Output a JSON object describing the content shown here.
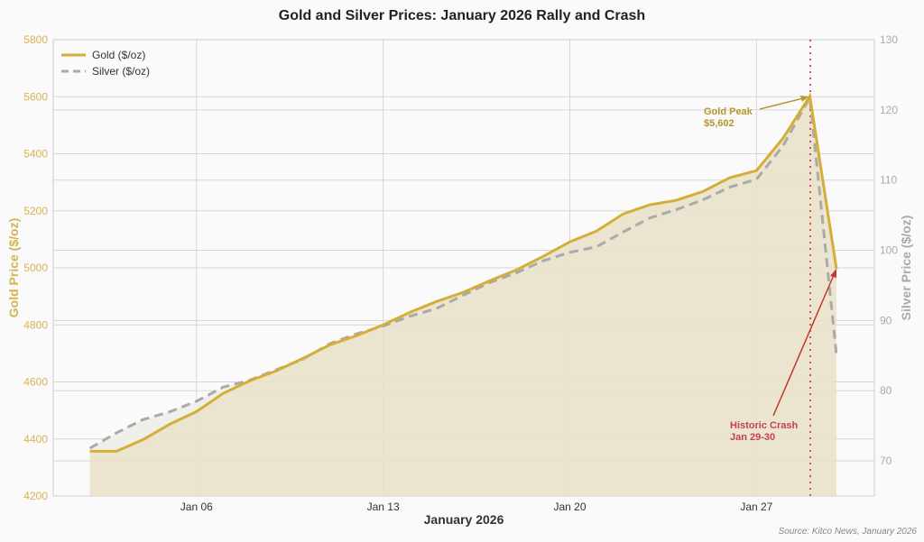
{
  "chart_data": {
    "type": "line",
    "title": "Gold and Silver Prices: January 2026 Rally and Crash",
    "xlabel": "January 2026",
    "ylabel_left": "Gold Price ($/oz)",
    "ylabel_right": "Silver Price ($/oz)",
    "ylim_left": [
      4200,
      5800
    ],
    "ylim_right": [
      65,
      130
    ],
    "yticks_left": [
      4200,
      4400,
      4600,
      4800,
      5000,
      5200,
      5400,
      5600,
      5800
    ],
    "yticks_right": [
      70,
      80,
      90,
      100,
      110,
      120,
      130
    ],
    "xticks": [
      "Jan 06",
      "Jan 13",
      "Jan 20",
      "Jan 27"
    ],
    "grid": true,
    "legend_position": "upper left",
    "x": [
      "Jan 02",
      "Jan 03",
      "Jan 04",
      "Jan 05",
      "Jan 06",
      "Jan 07",
      "Jan 08",
      "Jan 09",
      "Jan 10",
      "Jan 11",
      "Jan 12",
      "Jan 13",
      "Jan 14",
      "Jan 15",
      "Jan 16",
      "Jan 17",
      "Jan 18",
      "Jan 19",
      "Jan 20",
      "Jan 21",
      "Jan 22",
      "Jan 23",
      "Jan 24",
      "Jan 25",
      "Jan 26",
      "Jan 27",
      "Jan 28",
      "Jan 29",
      "Jan 30"
    ],
    "series": [
      {
        "name": "Gold ($/oz)",
        "axis": "left",
        "color": "#d4af37",
        "style": "solid",
        "fill": true,
        "values": [
          4357,
          4357,
          4398,
          4452,
          4496,
          4560,
          4604,
          4639,
          4683,
          4730,
          4762,
          4800,
          4844,
          4882,
          4914,
          4955,
          4993,
          5040,
          5091,
          5129,
          5189,
          5221,
          5237,
          5268,
          5316,
          5341,
          5455,
          5602,
          4996
        ]
      },
      {
        "name": "Silver ($/oz)",
        "axis": "right",
        "color": "#aaaaaa",
        "style": "dashed",
        "values": [
          71.8,
          74.0,
          75.9,
          77.0,
          78.5,
          80.5,
          81.5,
          83.0,
          84.5,
          86.7,
          88.1,
          89.2,
          90.6,
          91.7,
          93.6,
          95.4,
          96.8,
          98.5,
          99.7,
          100.5,
          102.6,
          104.6,
          105.8,
          107.2,
          109.0,
          110.1,
          114.9,
          121.8,
          85.1
        ]
      }
    ],
    "annotations": [
      {
        "text": "Gold Peak\n$5,602",
        "x": "Jan 29",
        "y": 5602,
        "color": "#b8962e"
      },
      {
        "text": "Historic Crash\nJan 29-30",
        "x": "Jan 30",
        "y": 4996,
        "color": "#c0392b"
      }
    ],
    "vline": {
      "x": "Jan 29",
      "color": "#d05060",
      "style": "dotted"
    }
  },
  "labels": {
    "title": "Gold and Silver Prices: January 2026 Rally and Crash",
    "xlabel": "January 2026",
    "ylabel_left": "Gold Price ($/oz)",
    "ylabel_right": "Silver Price ($/oz)",
    "legend_gold": "Gold ($/oz)",
    "legend_silver": "Silver ($/oz)",
    "peak_line1": "Gold Peak",
    "peak_line2": "$5,602",
    "crash_line1": "Historic Crash",
    "crash_line2": "Jan 29-30",
    "source": "Source: Kitco News, January 2026"
  },
  "ticks": {
    "left": [
      "5800",
      "5600",
      "5400",
      "5200",
      "5000",
      "4800",
      "4600",
      "4400",
      "4200"
    ],
    "right": [
      "130",
      "120",
      "110",
      "100",
      "90",
      "80",
      "70"
    ],
    "x": [
      "Jan 06",
      "Jan 13",
      "Jan 20",
      "Jan 27"
    ]
  }
}
